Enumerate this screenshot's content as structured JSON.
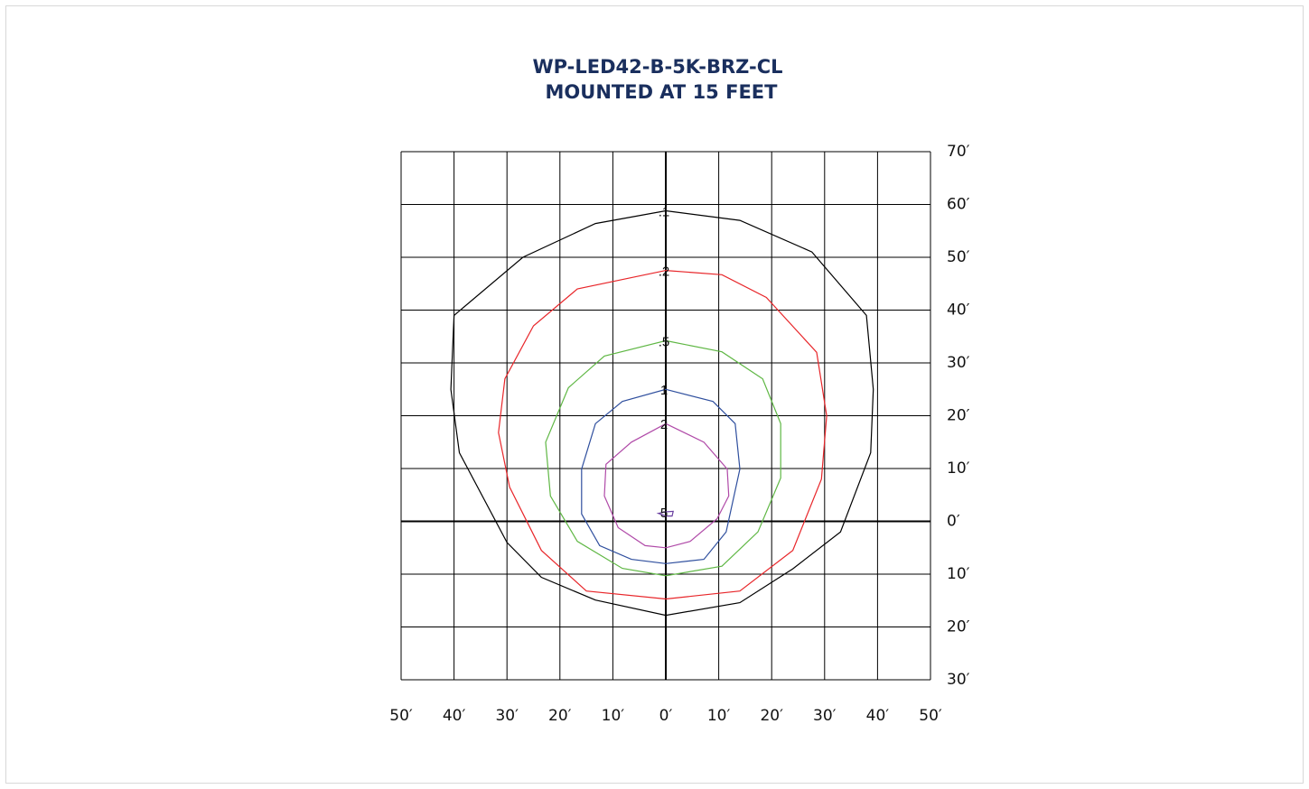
{
  "chart_data": {
    "type": "isoline",
    "title": "WP-LED42-B-5K-BRZ-CL",
    "subtitle": "MOUNTED AT 15 FEET",
    "xlim": [
      -50,
      50
    ],
    "ylim": [
      -30,
      70
    ],
    "xticks": [
      {
        "value": -50,
        "label": "50′"
      },
      {
        "value": -40,
        "label": "40′"
      },
      {
        "value": -30,
        "label": "30′"
      },
      {
        "value": -20,
        "label": "20′"
      },
      {
        "value": -10,
        "label": "10′"
      },
      {
        "value": 0,
        "label": "0′"
      },
      {
        "value": 10,
        "label": "10′"
      },
      {
        "value": 20,
        "label": "20′"
      },
      {
        "value": 30,
        "label": "30′"
      },
      {
        "value": 40,
        "label": "40′"
      },
      {
        "value": 50,
        "label": "50′"
      }
    ],
    "yticks": [
      {
        "value": 70,
        "label": "70′"
      },
      {
        "value": 60,
        "label": "60′"
      },
      {
        "value": 50,
        "label": "50′"
      },
      {
        "value": 40,
        "label": "40′"
      },
      {
        "value": 30,
        "label": "30′"
      },
      {
        "value": 20,
        "label": "20′"
      },
      {
        "value": 10,
        "label": "10′"
      },
      {
        "value": 0,
        "label": "0′"
      },
      {
        "value": -10,
        "label": "10′"
      },
      {
        "value": -20,
        "label": "20′"
      },
      {
        "value": -30,
        "label": "30′"
      }
    ],
    "grid": true,
    "series": [
      {
        "name": ".1",
        "color": "#000000",
        "x": [
          0,
          14,
          27.6,
          37.9,
          39.2,
          38.7,
          33,
          24,
          14,
          0,
          -13.3,
          -23.5,
          -30,
          -39,
          -40.6,
          -40,
          -27,
          -13.3
        ],
        "y": [
          58.8,
          57,
          51,
          39,
          25,
          13,
          -2,
          -9,
          -15.4,
          -17.8,
          -14.9,
          -10.6,
          -4,
          13,
          25,
          39,
          50,
          56.4
        ]
      },
      {
        "name": ".2",
        "color": "#e8262a",
        "x": [
          0,
          10.6,
          19,
          28.5,
          30.4,
          29.4,
          24,
          14,
          0,
          -15,
          -23.5,
          -29.5,
          -31.6,
          -30.4,
          -25,
          -16.7
        ],
        "y": [
          47.5,
          46.7,
          42.4,
          32,
          20,
          8,
          -5.5,
          -13.2,
          -14.7,
          -13.2,
          -5.5,
          6.5,
          16.8,
          27,
          37,
          44
        ]
      },
      {
        "name": ".5",
        "color": "#5fb744",
        "x": [
          0,
          10.6,
          18.3,
          21.7,
          21.7,
          17.4,
          10.6,
          0,
          -8.2,
          -16.7,
          -21.8,
          -22.7,
          -18.4,
          -11.6
        ],
        "y": [
          34.2,
          32.1,
          27,
          18.5,
          8.2,
          -2,
          -8.5,
          -10.3,
          -8.9,
          -3.8,
          4.8,
          15,
          25.3,
          31.3
        ]
      },
      {
        "name": "1",
        "color": "#2f4f9e",
        "x": [
          0,
          8.9,
          13.1,
          14,
          11.4,
          7.2,
          0,
          -6.5,
          -12.5,
          -15.9,
          -15.9,
          -13.3,
          -8.2
        ],
        "y": [
          25,
          22.7,
          18.5,
          9.9,
          -2,
          -7.2,
          -8,
          -7.2,
          -4.6,
          1.4,
          9.9,
          18.5,
          22.7
        ]
      },
      {
        "name": "2",
        "color": "#b04aa8",
        "x": [
          0,
          7.2,
          11.6,
          11.9,
          9.7,
          4.6,
          0,
          -3.9,
          -9,
          -11.6,
          -11.3,
          -6.5
        ],
        "y": [
          18.5,
          15,
          9.9,
          4.8,
          0.5,
          -3.8,
          -5,
          -4.6,
          -1.2,
          4.8,
          10.8,
          15
        ]
      },
      {
        "name": "5",
        "color": "#6a3fa0",
        "x": [
          0,
          1.4,
          1.2,
          0,
          -1.4
        ],
        "y": [
          1.8,
          1.9,
          1.0,
          1.0,
          1.5
        ]
      }
    ]
  }
}
